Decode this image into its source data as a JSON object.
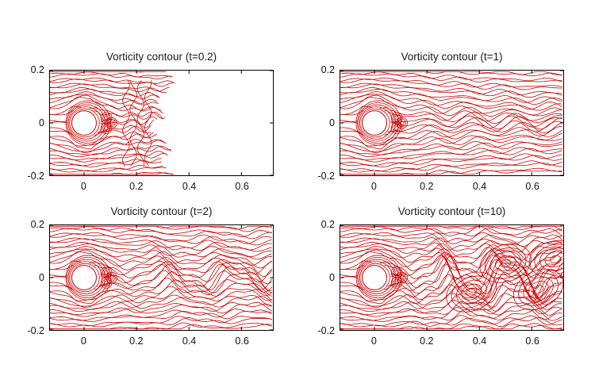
{
  "chart_data": {
    "type": "contour",
    "description": "Vorticity contours of flow past a circular cylinder at four time instants",
    "plots": [
      {
        "title": "Vorticity contour (t=0.2)",
        "t": 0.2,
        "wake_extent_x": 0.36
      },
      {
        "title": "Vorticity contour (t=1)",
        "t": 1,
        "wake_extent_x": 0.72
      },
      {
        "title": "Vorticity contour (t=2)",
        "t": 2,
        "wake_extent_x": 0.72
      },
      {
        "title": "Vorticity contour (t=10)",
        "t": 10,
        "wake_extent_x": 0.72
      }
    ],
    "xlim": [
      -0.13,
      0.72
    ],
    "ylim": [
      -0.2,
      0.2
    ],
    "xticks": [
      0,
      0.2,
      0.4,
      0.6
    ],
    "yticks": [
      0.2,
      0,
      -0.2
    ],
    "xticklabels": [
      "0",
      "0.2",
      "0.4",
      "0.6"
    ],
    "yticklabels": [
      "0.2",
      "0",
      "-0.2"
    ],
    "contour_color": "#cc0000",
    "axis_color": "#000000",
    "cylinder": {
      "center": [
        0,
        0
      ],
      "radius": 0.047
    }
  }
}
